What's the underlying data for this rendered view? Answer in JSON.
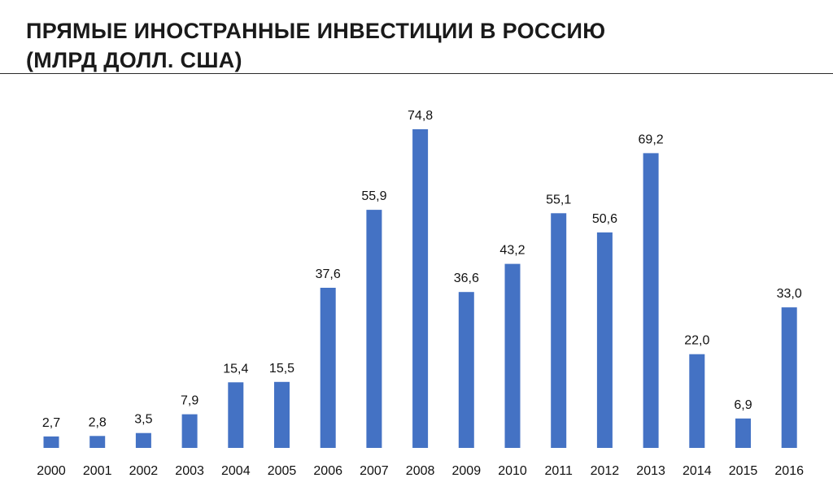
{
  "chart_data": {
    "type": "bar",
    "title": [
      "ПРЯМЫЕ ИНОСТРАННЫЕ ИНВЕСТИЦИИ В РОССИЮ",
      "(МЛРД ДОЛЛ. США)"
    ],
    "categories": [
      "2000",
      "2001",
      "2002",
      "2003",
      "2004",
      "2005",
      "2006",
      "2007",
      "2008",
      "2009",
      "2010",
      "2011",
      "2012",
      "2013",
      "2014",
      "2015",
      "2016"
    ],
    "values": [
      2.7,
      2.8,
      3.5,
      7.9,
      15.4,
      15.5,
      37.6,
      55.9,
      74.8,
      36.6,
      43.2,
      55.1,
      50.6,
      69.2,
      22.0,
      6.9,
      33.0
    ],
    "value_labels": [
      "2,7",
      "2,8",
      "3,5",
      "7,9",
      "15,4",
      "15,5",
      "37,6",
      "55,9",
      "74,8",
      "36,6",
      "43,2",
      "55,1",
      "50,6",
      "69,2",
      "22,0",
      "6,9",
      "33,0"
    ],
    "xlabel": "",
    "ylabel": "",
    "ylim": [
      0,
      75
    ],
    "grid": false,
    "legend": "none",
    "bar_color": "#4472C4"
  }
}
